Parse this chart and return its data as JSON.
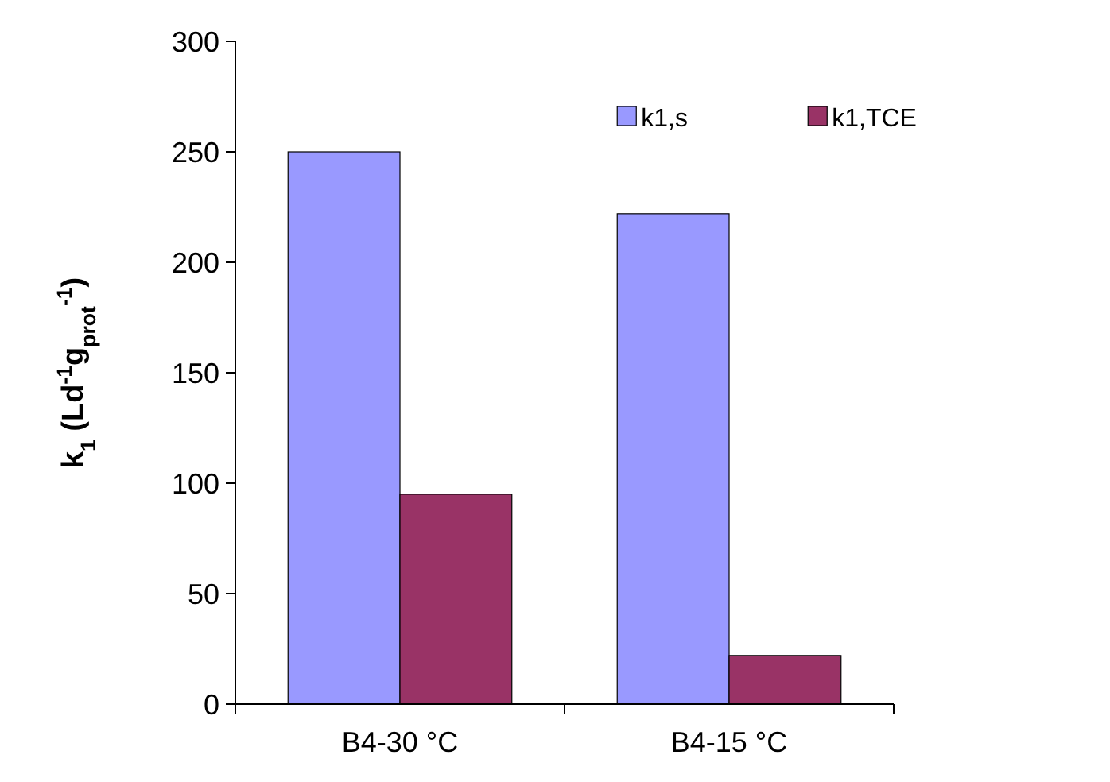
{
  "chart_data": {
    "type": "bar",
    "ylabel": "k$_{1}$ (Ld$^{-1}$g$_{prot}$$^{-1}$)",
    "categories": [
      "B4-30 °C",
      "B4-15 °C"
    ],
    "series": [
      {
        "name": "k1,s",
        "color": "#9999ff",
        "values": [
          250,
          222
        ]
      },
      {
        "name": "k1,TCE",
        "color": "#993366",
        "values": [
          95,
          22
        ]
      }
    ],
    "ylim": [
      0,
      300
    ],
    "yticks": [
      0,
      50,
      100,
      150,
      200,
      250,
      300
    ],
    "grid": false,
    "legend": "top right"
  }
}
